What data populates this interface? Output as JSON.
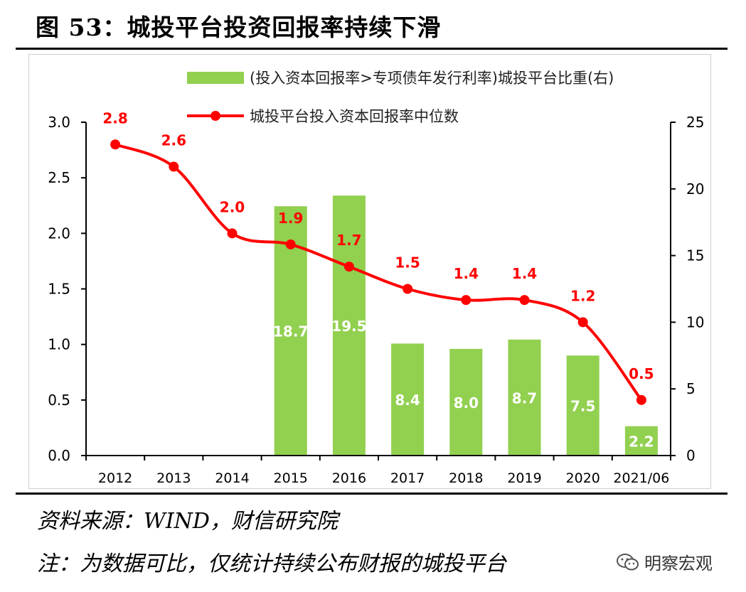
{
  "figure": {
    "title": "图 53：城投平台投资回报率持续下滑",
    "source": "资料来源：WIND，财信研究院",
    "note": "注：为数据可比，仅统计持续公布财报的城投平台",
    "watermark": "明察宏观",
    "watermark_icon": "wechat-icon"
  },
  "chart_data": {
    "type": "bar+line",
    "categories": [
      "2012",
      "2013",
      "2014",
      "2015",
      "2016",
      "2017",
      "2018",
      "2019",
      "2020",
      "2021/06"
    ],
    "series": [
      {
        "name": "(投入资本回报率>专项债年发行利率)城投平台比重(右)",
        "type": "bar",
        "axis": "right",
        "color": "#92d050",
        "values": [
          null,
          null,
          null,
          18.7,
          19.5,
          8.4,
          8.0,
          8.7,
          7.5,
          2.2
        ],
        "labels": [
          "",
          "",
          "",
          "18.7",
          "19.5",
          "8.4",
          "8.0",
          "8.7",
          "7.5",
          "2.2"
        ]
      },
      {
        "name": "城投平台投入资本回报率中位数",
        "type": "line",
        "axis": "left",
        "color": "#ff0000",
        "values": [
          2.8,
          2.6,
          2.0,
          1.9,
          1.7,
          1.5,
          1.4,
          1.4,
          1.2,
          0.5
        ],
        "labels": [
          "2.8",
          "2.6",
          "2.0",
          "1.9",
          "1.7",
          "1.5",
          "1.4",
          "1.4",
          "1.2",
          "0.5"
        ]
      }
    ],
    "y_left": {
      "min": 0,
      "max": 3,
      "ticks": [
        0,
        0.5,
        1,
        1.5,
        2,
        2.5,
        3
      ],
      "tick_labels": [
        "0.0",
        "0.5",
        "1.0",
        "1.5",
        "2.0",
        "2.5",
        "3.0"
      ]
    },
    "y_right": {
      "min": 0,
      "max": 25,
      "ticks": [
        0,
        5,
        10,
        15,
        20,
        25
      ],
      "tick_labels": [
        "0",
        "5",
        "10",
        "15",
        "20",
        "25"
      ]
    },
    "legend": {
      "position": "top"
    },
    "grid": false
  }
}
